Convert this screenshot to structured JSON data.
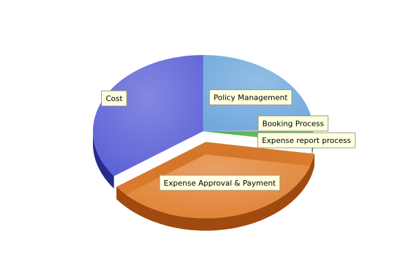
{
  "chart_data": {
    "type": "pie",
    "title": "",
    "slices": [
      {
        "label": "Policy Management",
        "value": 24.5,
        "color": "#6fa8dc",
        "dark": "#3d6fa3"
      },
      {
        "label": "Booking Process",
        "value": 0.6,
        "color": "#b0b0b8",
        "dark": "#6e6e76"
      },
      {
        "label": "Expense report process",
        "value": 2.4,
        "color": "#3aa639",
        "dark": "#1f6b1e"
      },
      {
        "label": "Expense Approval & Payment",
        "value": 37.5,
        "color": "#e08030",
        "dark": "#a04a10"
      },
      {
        "label": "Cost",
        "value": 35.0,
        "color": "#5a60d6",
        "dark": "#262a8a"
      }
    ],
    "exploded": "Expense Approval & Payment",
    "style": "3d"
  }
}
